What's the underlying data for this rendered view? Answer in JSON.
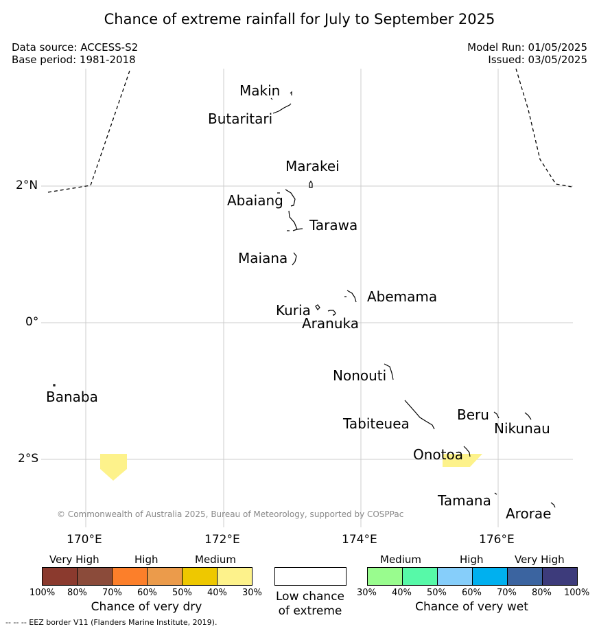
{
  "title": "Chance of extreme rainfall for July to September 2025",
  "data_source": "Data source: ACCESS-S2",
  "base_period": "Base period: 1981-2018",
  "model_run": "Model Run: 01/05/2025",
  "issued": "Issued: 03/05/2025",
  "axes": {
    "lat_labels": [
      "2°N",
      "0°",
      "2°S"
    ],
    "lon_labels": [
      "170°E",
      "172°E",
      "174°E",
      "176°E"
    ]
  },
  "islands": {
    "makin": "Makin",
    "butaritari": "Butaritari",
    "marakei": "Marakei",
    "abaiang": "Abaiang",
    "tarawa": "Tarawa",
    "maiana": "Maiana",
    "abemama": "Abemama",
    "kuria": "Kuria",
    "aranuka": "Aranuka",
    "nonouti": "Nonouti",
    "banaba": "Banaba",
    "tabiteuea": "Tabiteuea",
    "beru": "Beru",
    "nikunau": "Nikunau",
    "onotoa": "Onotoa",
    "tamana": "Tamana",
    "arorae": "Arorae"
  },
  "copyright": "© Commonwealth of Australia 2025, Bureau of Meteorology, supported by COSPPac",
  "legend": {
    "dry": {
      "categories": [
        "Very High",
        "High",
        "Medium"
      ],
      "ticks": [
        "100%",
        "80%",
        "70%",
        "60%",
        "50%",
        "40%",
        "30%"
      ],
      "colors": [
        "#8b3a2e",
        "#8b4b3a",
        "#fc7f2a",
        "#eb9b4b",
        "#eec800",
        "#fdf28b"
      ],
      "title": "Chance of very dry"
    },
    "low": {
      "line1": "Low chance",
      "line2": "of extreme",
      "color": "#ffffff"
    },
    "wet": {
      "categories": [
        "Medium",
        "High",
        "Very High"
      ],
      "ticks": [
        "30%",
        "40%",
        "50%",
        "60%",
        "70%",
        "80%",
        "100%"
      ],
      "colors": [
        "#99fc8e",
        "#57f9a8",
        "#86cefa",
        "#00b0ef",
        "#3b64a0",
        "#3d3b7b"
      ],
      "title": "Chance of very wet"
    }
  },
  "footnote": "--  --  -- EEZ border V11 (Flanders Marine Institute, 2019)."
}
